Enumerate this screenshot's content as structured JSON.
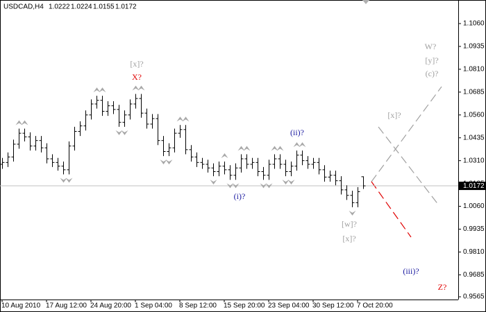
{
  "chart_data": {
    "type": "ohlc",
    "title": "USDCAD,H4",
    "color": "#000000",
    "price_line_color": "#c0c0c0",
    "fractal_color": "#a8a8a8",
    "categories": [
      "10 Aug 2010",
      null,
      null,
      null,
      null,
      null,
      null,
      null,
      "17 Aug 12:00",
      null,
      null,
      null,
      null,
      null,
      null,
      null,
      "24 Aug 20:00",
      null,
      null,
      null,
      null,
      null,
      null,
      null,
      "1 Sep 04:00",
      null,
      null,
      null,
      null,
      null,
      null,
      null,
      "8 Sep 12:00",
      null,
      null,
      null,
      null,
      null,
      null,
      null,
      "15 Sep 20:00",
      null,
      null,
      null,
      null,
      null,
      null,
      null,
      "23 Sep 04:00",
      null,
      null,
      null,
      null,
      null,
      null,
      null,
      "30 Sep 12:00",
      null,
      null,
      null,
      null,
      null,
      null,
      null,
      "7 Oct 20:00",
      null
    ],
    "open": [
      1.029,
      1.03,
      1.033,
      1.04,
      1.046,
      1.044,
      1.039,
      1.042,
      1.038,
      1.032,
      1.03,
      1.028,
      1.026,
      1.039,
      1.047,
      1.05,
      1.056,
      1.062,
      1.064,
      1.058,
      1.061,
      1.059,
      1.052,
      1.056,
      1.062,
      1.065,
      1.057,
      1.051,
      1.054,
      1.042,
      1.036,
      1.038,
      1.046,
      1.048,
      1.037,
      1.033,
      1.03,
      1.029,
      1.027,
      1.025,
      1.028,
      1.026,
      1.023,
      1.027,
      1.032,
      1.029,
      1.03,
      1.025,
      1.023,
      1.029,
      1.032,
      1.029,
      1.025,
      1.028,
      1.034,
      1.031,
      1.029,
      1.03,
      1.026,
      1.022,
      1.023,
      1.02,
      1.015,
      1.012,
      1.008,
      1.0222
    ],
    "high": [
      1.0325,
      1.0355,
      1.0425,
      1.0485,
      1.0485,
      1.0465,
      1.0445,
      1.0445,
      1.0405,
      1.0345,
      1.0325,
      1.0305,
      1.0415,
      1.0495,
      1.0525,
      1.0585,
      1.0645,
      1.0665,
      1.0665,
      1.0635,
      1.0635,
      1.0615,
      1.0585,
      1.0645,
      1.0675,
      1.0675,
      1.0595,
      1.0565,
      1.0565,
      1.0445,
      1.0405,
      1.0485,
      1.0505,
      1.0505,
      1.0395,
      1.0355,
      1.0325,
      1.0315,
      1.0295,
      1.0305,
      1.0305,
      1.0285,
      1.0295,
      1.0345,
      1.0345,
      1.0325,
      1.0325,
      1.0275,
      1.0315,
      1.0345,
      1.0345,
      1.0315,
      1.0305,
      1.0365,
      1.0365,
      1.0335,
      1.0325,
      1.0325,
      1.0285,
      1.0255,
      1.0255,
      1.0225,
      1.0175,
      1.0145,
      1.0165,
      1.0224
    ],
    "low": [
      1.0265,
      1.0275,
      1.0305,
      1.0375,
      1.0415,
      1.0365,
      1.0365,
      1.0355,
      1.0295,
      1.0275,
      1.0255,
      1.0235,
      1.0235,
      1.0365,
      1.0445,
      1.0475,
      1.0535,
      1.0595,
      1.0555,
      1.0555,
      1.0565,
      1.0495,
      1.0495,
      1.0535,
      1.0595,
      1.0545,
      1.0485,
      1.0485,
      1.0395,
      1.0335,
      1.0335,
      1.0355,
      1.0435,
      1.0345,
      1.0305,
      1.0275,
      1.0265,
      1.0245,
      1.0225,
      1.0225,
      1.0235,
      1.0205,
      1.0205,
      1.0245,
      1.0265,
      1.0265,
      1.0225,
      1.0205,
      1.0205,
      1.0265,
      1.0265,
      1.0225,
      1.0225,
      1.0255,
      1.0285,
      1.0265,
      1.0265,
      1.0235,
      1.0195,
      1.0195,
      1.0175,
      1.0125,
      1.0095,
      1.0055,
      1.0055,
      1.0155
    ],
    "close": [
      1.03,
      1.033,
      1.04,
      1.046,
      1.044,
      1.039,
      1.042,
      1.038,
      1.032,
      1.03,
      1.028,
      1.026,
      1.039,
      1.047,
      1.05,
      1.056,
      1.062,
      1.064,
      1.058,
      1.061,
      1.059,
      1.052,
      1.056,
      1.062,
      1.065,
      1.057,
      1.051,
      1.054,
      1.042,
      1.036,
      1.038,
      1.046,
      1.048,
      1.037,
      1.033,
      1.03,
      1.029,
      1.027,
      1.025,
      1.028,
      1.026,
      1.023,
      1.027,
      1.032,
      1.029,
      1.03,
      1.025,
      1.023,
      1.029,
      1.032,
      1.029,
      1.025,
      1.028,
      1.034,
      1.031,
      1.029,
      1.03,
      1.026,
      1.022,
      1.023,
      1.02,
      1.015,
      1.012,
      1.008,
      1.014,
      1.0172
    ],
    "ylim": [
      0.955,
      1.1189
    ],
    "yticks": [
      {
        "value": 1.106,
        "label": "1.1060"
      },
      {
        "value": 1.0935,
        "label": "1.0935"
      },
      {
        "value": 1.081,
        "label": "1.0810"
      },
      {
        "value": 1.0685,
        "label": "1.0685"
      },
      {
        "value": 1.056,
        "label": "1.0560"
      },
      {
        "value": 1.0435,
        "label": "1.0435"
      },
      {
        "value": 1.031,
        "label": "1.0310"
      },
      {
        "value": 1.0185,
        "label": "1.0185"
      },
      {
        "value": 1.006,
        "label": "1.0060"
      },
      {
        "value": 0.9935,
        "label": "0.9935"
      },
      {
        "value": 0.981,
        "label": "0.9810"
      },
      {
        "value": 0.9685,
        "label": "0.9685"
      },
      {
        "value": 0.9565,
        "label": "0.9565"
      }
    ],
    "annotations": [
      {
        "text": "[x]?",
        "color": "#a0a0a0"
      },
      {
        "text": "X?",
        "color": "#e00000"
      },
      {
        "text": "(ii)?",
        "color": "#1a1aa0"
      },
      {
        "text": "(i)?",
        "color": "#1a1aa0"
      },
      {
        "text": "[w]?",
        "color": "#a0a0a0"
      },
      {
        "text": "[x]?",
        "color": "#a0a0a0"
      },
      {
        "text": "[x]?",
        "color": "#a0a0a0"
      },
      {
        "text": "W?",
        "color": "#a0a0a0"
      },
      {
        "text": "[y]?",
        "color": "#a0a0a0"
      },
      {
        "text": "(c)?",
        "color": "#a0a0a0"
      },
      {
        "text": "(iii)?",
        "color": "#1a1aa0"
      },
      {
        "text": "Z?",
        "color": "#e00000"
      }
    ]
  }
}
